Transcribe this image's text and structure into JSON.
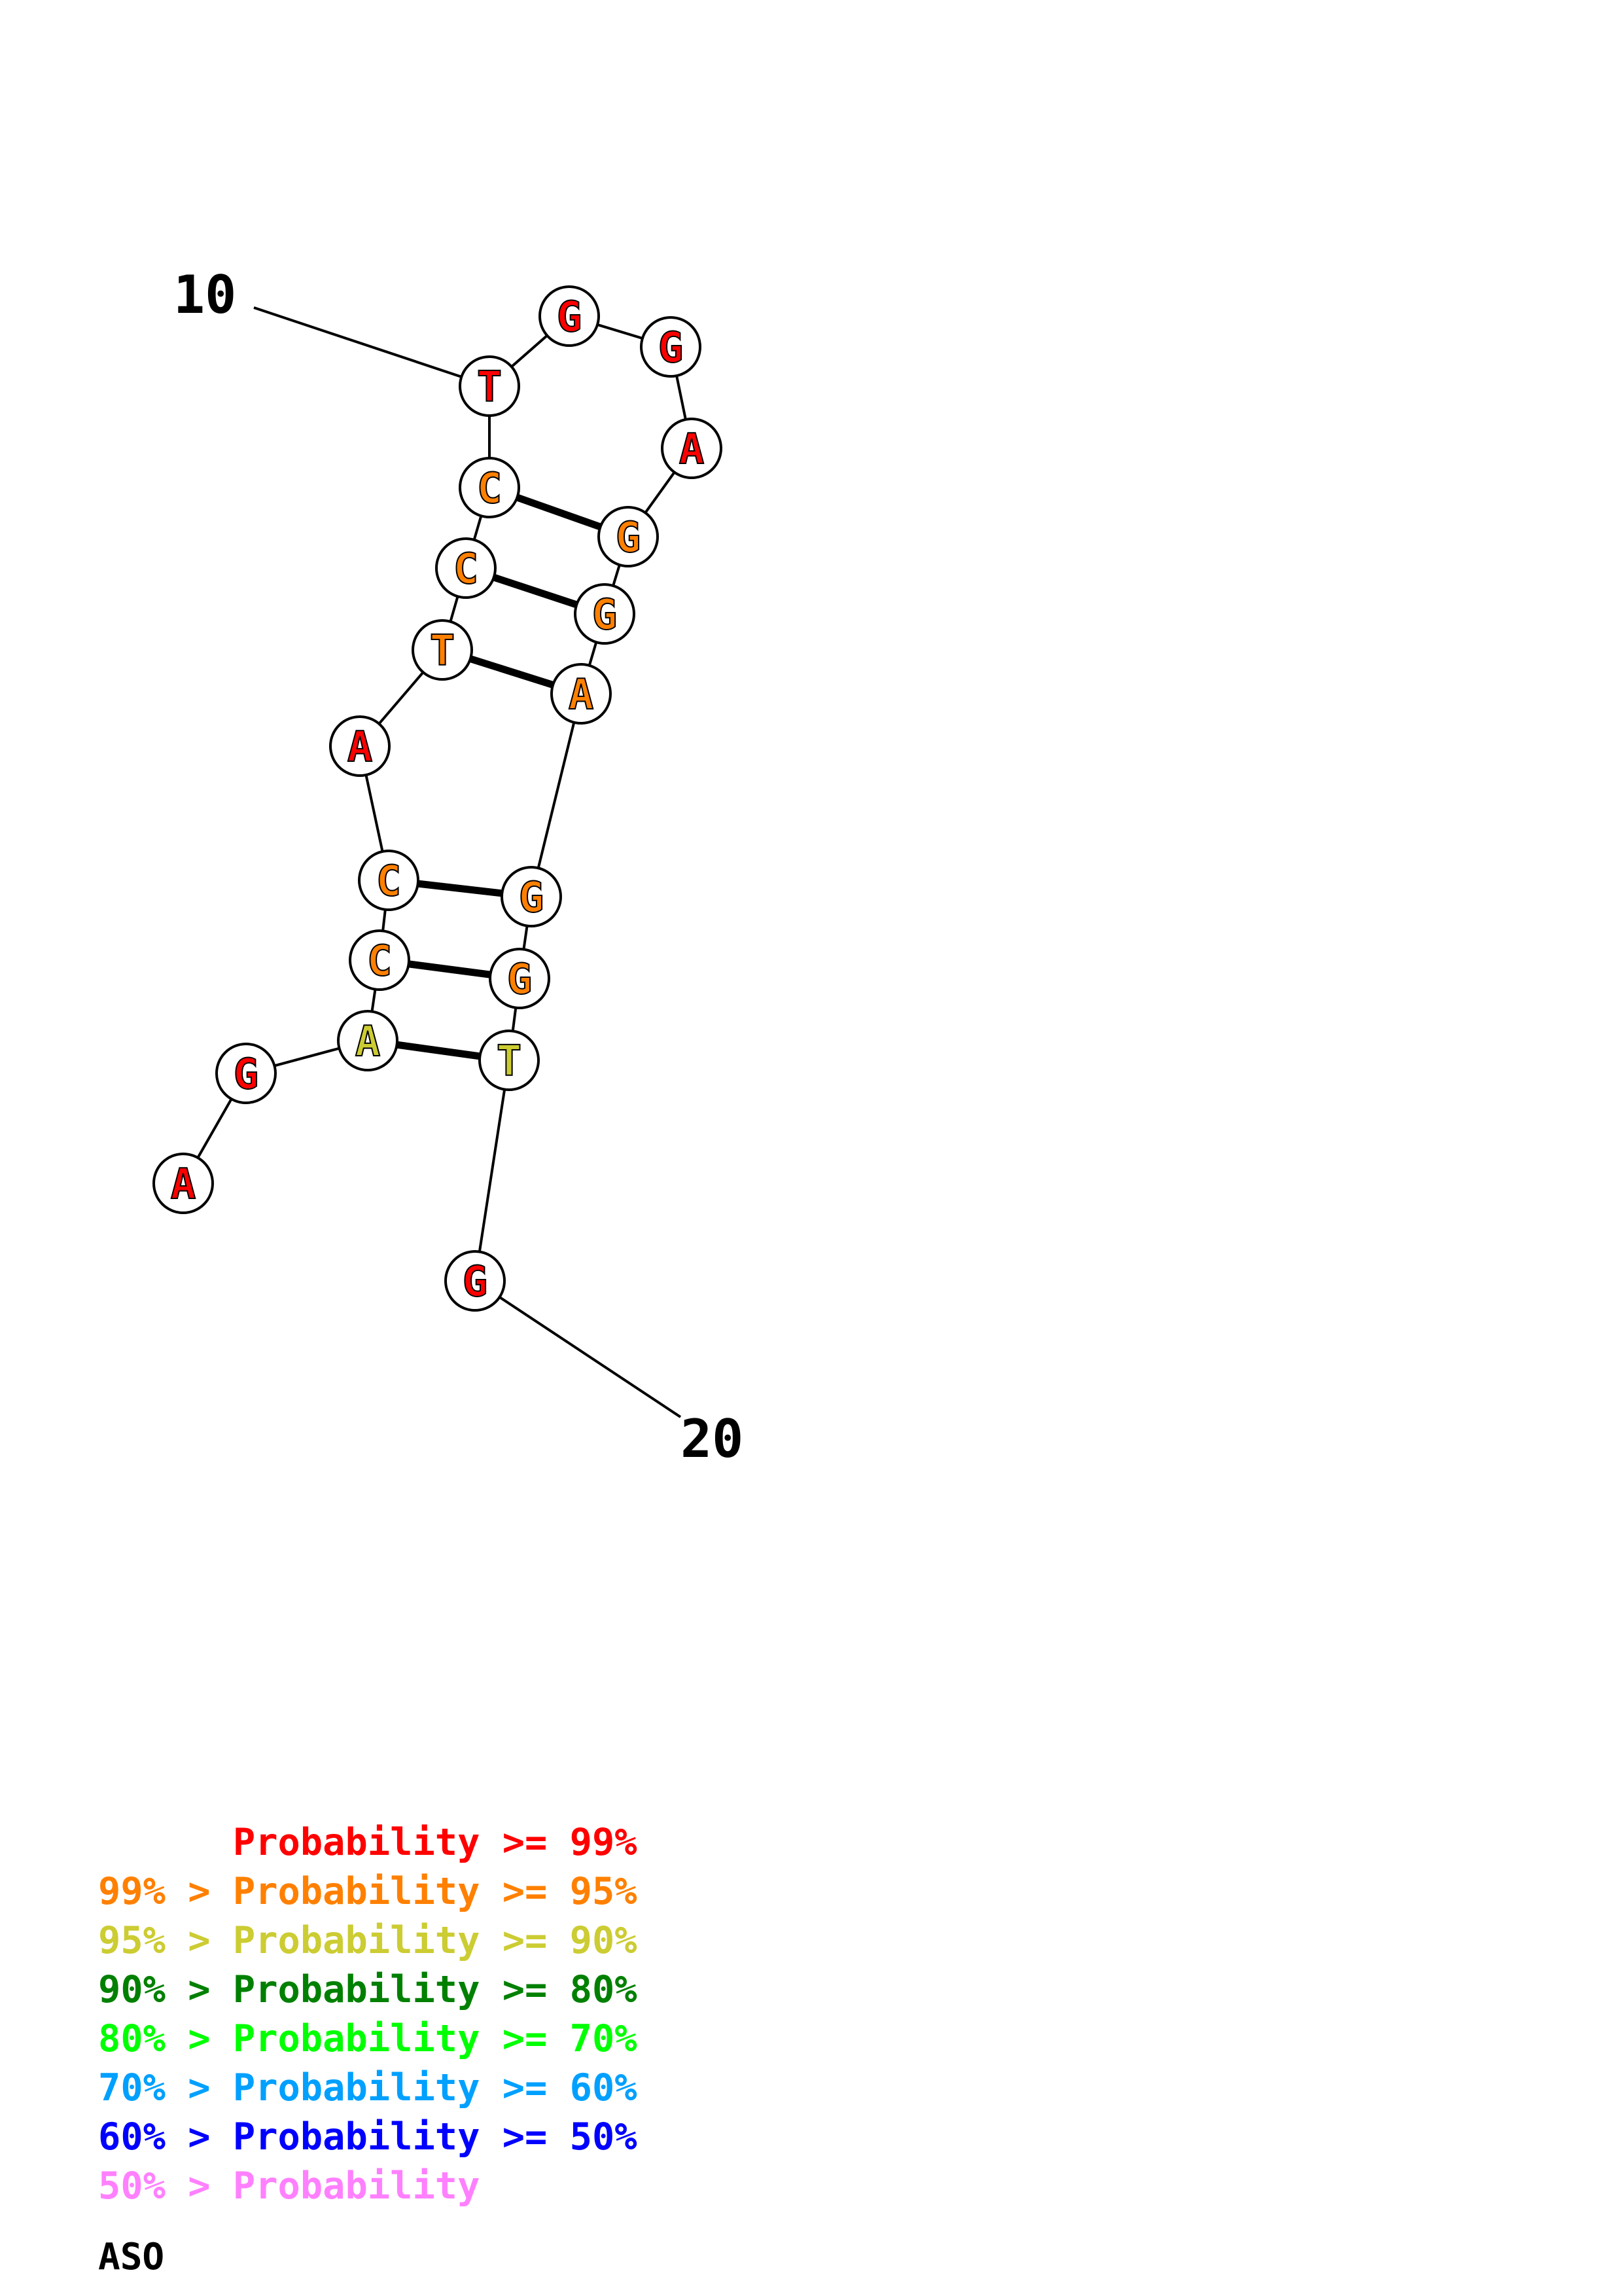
{
  "structure": {
    "nucleotides": [
      {
        "base": "A",
        "tier": 0
      },
      {
        "base": "G",
        "tier": 0
      },
      {
        "base": "A",
        "tier": 2
      },
      {
        "base": "C",
        "tier": 1
      },
      {
        "base": "C",
        "tier": 1
      },
      {
        "base": "A",
        "tier": 0
      },
      {
        "base": "T",
        "tier": 1
      },
      {
        "base": "C",
        "tier": 1
      },
      {
        "base": "C",
        "tier": 1
      },
      {
        "base": "T",
        "tier": 0
      },
      {
        "base": "G",
        "tier": 0
      },
      {
        "base": "G",
        "tier": 0
      },
      {
        "base": "A",
        "tier": 0
      },
      {
        "base": "G",
        "tier": 1
      },
      {
        "base": "G",
        "tier": 1
      },
      {
        "base": "A",
        "tier": 1
      },
      {
        "base": "G",
        "tier": 1
      },
      {
        "base": "G",
        "tier": 1
      },
      {
        "base": "T",
        "tier": 2
      },
      {
        "base": "G",
        "tier": 0
      }
    ],
    "pairs": [
      [
        3,
        19
      ],
      [
        4,
        18
      ],
      [
        5,
        17
      ],
      [
        7,
        16
      ],
      [
        8,
        15
      ],
      [
        9,
        14
      ]
    ],
    "position_labels": [
      {
        "text": "10",
        "index": 10
      },
      {
        "text": "20",
        "index": 20
      }
    ]
  },
  "legend": {
    "rows": [
      {
        "prefix": "    ",
        "text": "Probability >= 99%",
        "color": "#ff0000"
      },
      {
        "prefix": "99% > ",
        "text": "Probability >= 95%",
        "color": "#ff8000"
      },
      {
        "prefix": "95% > ",
        "text": "Probability >= 90%",
        "color": "#cccc33"
      },
      {
        "prefix": "90% > ",
        "text": "Probability >= 80%",
        "color": "#008000"
      },
      {
        "prefix": "80% > ",
        "text": "Probability >= 70%",
        "color": "#00ff00"
      },
      {
        "prefix": "70% > ",
        "text": "Probability >= 60%",
        "color": "#00a0ff"
      },
      {
        "prefix": "60% > ",
        "text": "Probability >= 50%",
        "color": "#0000ff"
      },
      {
        "prefix": "50% > ",
        "text": "Probability",
        "color": "#ff80ff"
      }
    ]
  },
  "caption": "ASO"
}
